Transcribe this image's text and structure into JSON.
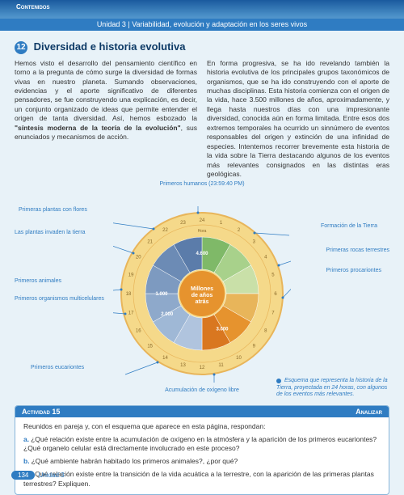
{
  "header": {
    "tab": "Contenidos",
    "unit": "Unidad 3",
    "subtitle": "Variabilidad, evolución y adaptación en los seres vivos"
  },
  "section": {
    "number": "12",
    "title": "Diversidad e historia evolutiva"
  },
  "body": {
    "col1": "Hemos visto el desarrollo del pensamiento científico en torno a la pregunta de cómo surge la diversidad de formas vivas en nuestro planeta. Sumando observaciones, evidencias y el aporte significativo de diferentes pensadores, se fue construyendo una explicación, es decir, un conjunto organizado de ideas que permite entender el origen de tanta diversidad. Así, hemos esbozado la ",
    "col1_bold": "\"síntesis moderna de la teoría de la evolución\"",
    "col1_tail": ", sus enunciados y mecanismos de acción.",
    "col2": "En forma progresiva, se ha ido revelando también la historia evolutiva de los principales grupos taxonómicos de organismos, que se ha ido construyendo con el aporte de muchas disciplinas. Esta historia comienza con el origen de la vida, hace 3.500 millones de años, aproximadamente, y llega hasta nuestros días con una impresionante diversidad, conocida aún en forma limitada. Entre esos dos extremos temporales ha ocurrido un sinnúmero de eventos responsables del origen y extinción de una infinidad de especies. Intentemos recorrer brevemente esta historia de la vida sobre la Tierra destacando algunos de los eventos más relevantes consignados en las distintas eras geológicas."
  },
  "diagram": {
    "center_top": "Millones",
    "center_mid": "de años",
    "center_bot": "atrás",
    "ring_bg": "#f5d98a",
    "ring_outer": "#e8b55a",
    "center_color": "#e6932e",
    "inner_labels": [
      "4.600",
      "1.000",
      "2.000",
      "3.000"
    ],
    "hours": [
      "1",
      "2",
      "3",
      "4",
      "5",
      "6",
      "7",
      "8",
      "9",
      "10",
      "11",
      "12",
      "13",
      "14",
      "15",
      "16",
      "17",
      "18",
      "19",
      "20",
      "21",
      "22",
      "23",
      "24"
    ],
    "hora_label": "Hora",
    "labels": {
      "humans": "Primeros humanos\n(23:59:40 PM)",
      "flowers": "Primeras plantas con flores",
      "plants_land": "Las plantas invaden la tierra",
      "animals": "Primeros animales",
      "multicell": "Primeros organismos\nmulticelulares",
      "eukaryotes": "Primeros eucariontes",
      "oxygen": "Acumulación de oxígeno libre",
      "earth": "Formación de la Tierra",
      "rocks": "Primeras rocas terrestres",
      "prokaryotes": "Primeros procariontes"
    },
    "caption": "Esquema que representa la historia de la Tierra, proyectada en 24 horas, con algunos de los eventos más relevantes.",
    "slice_colors": [
      "#7fb968",
      "#a8d18b",
      "#c9e0a8",
      "#e8b55a",
      "#e6932e",
      "#d97720",
      "#b0c4de",
      "#9fb8d6",
      "#8ea9cb",
      "#7d9ac0",
      "#6c8bb5",
      "#5b7caa"
    ]
  },
  "activity": {
    "num": "Actividad 15",
    "type": "Analizar",
    "intro": "Reunidos en pareja y, con el esquema que aparece en esta página, respondan:",
    "qa": "¿Qué relación existe entre la acumulación de oxígeno en la atmósfera y la aparición de los primeros eucariontes? ¿Qué organelo celular está directamente involucrado en este proceso?",
    "qb": "¿Qué ambiente habrán habitado los primeros animales?, ¿por qué?",
    "qc": "¿Qué relación existe entre la transición de la vida acuática a la terrestre, con la aparición de las primeras plantas terrestres? Expliquen."
  },
  "footer": {
    "page": "134",
    "unit": "Unidad 3"
  }
}
